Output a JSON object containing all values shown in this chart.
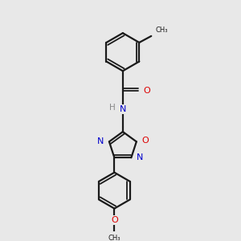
{
  "background_color": "#e8e8e8",
  "bond_color": "#1a1a1a",
  "atom_colors": {
    "N": "#0000cc",
    "O": "#dd0000",
    "H": "#888888",
    "C": "#1a1a1a"
  },
  "figsize": [
    3.0,
    3.0
  ],
  "dpi": 100,
  "xlim": [
    0,
    10
  ],
  "ylim": [
    0,
    10
  ]
}
